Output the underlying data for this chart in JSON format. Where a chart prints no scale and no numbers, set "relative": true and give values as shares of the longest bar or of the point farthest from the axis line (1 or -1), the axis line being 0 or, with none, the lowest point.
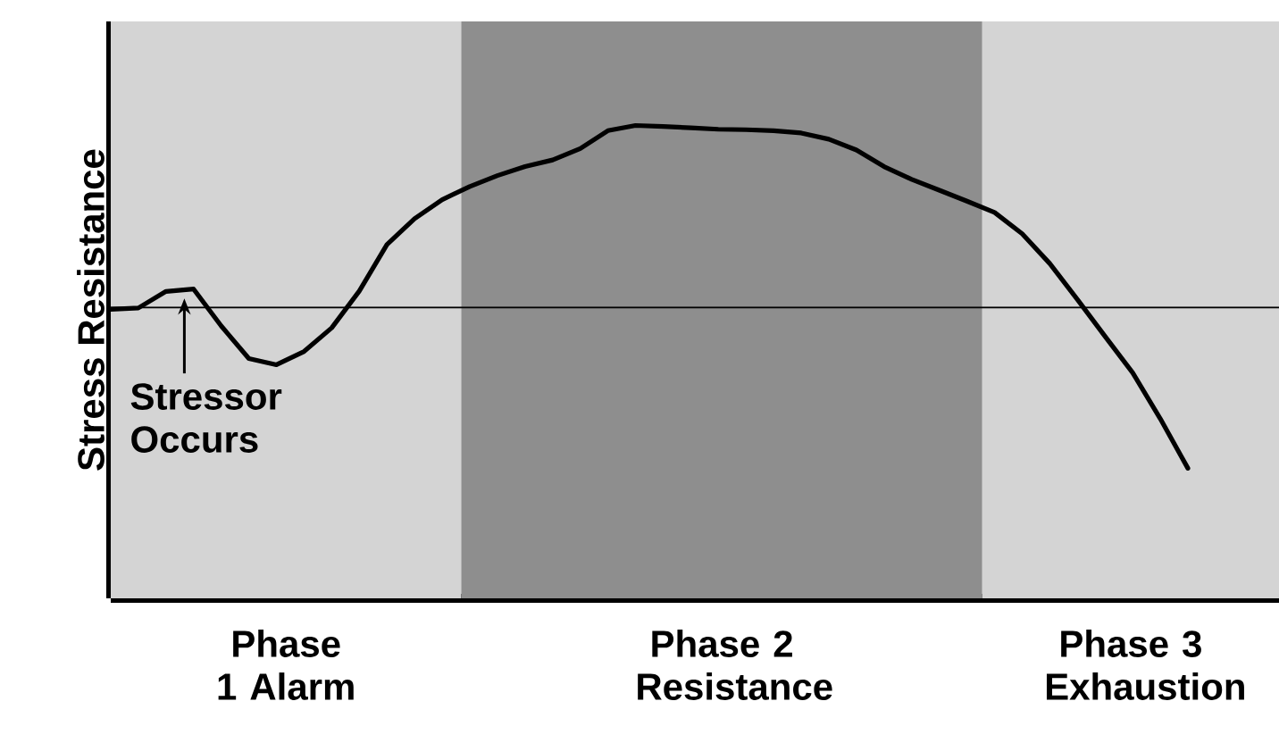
{
  "chart_data": {
    "type": "line",
    "ylabel": "Stress Resistance",
    "relative": true,
    "tick_labels": false,
    "color": "#000000",
    "categories": [
      null,
      null,
      null,
      null,
      null,
      null,
      null,
      null,
      null,
      null,
      null,
      null,
      null,
      null,
      null,
      null,
      null,
      null,
      null,
      null,
      null,
      null,
      null,
      null,
      null,
      null,
      null,
      null,
      null,
      null,
      null,
      null,
      null,
      null,
      null,
      null,
      null,
      null,
      null,
      null
    ],
    "values": [
      0.611,
      0.614,
      0.649,
      0.654,
      0.576,
      0.507,
      0.494,
      0.522,
      0.572,
      0.65,
      0.748,
      0.803,
      0.843,
      0.871,
      0.894,
      0.913,
      0.927,
      0.951,
      0.989,
      1.0,
      0.998,
      0.995,
      0.992,
      0.991,
      0.989,
      0.984,
      0.971,
      0.948,
      0.913,
      0.886,
      0.863,
      0.84,
      0.816,
      0.771,
      0.708,
      0.632,
      0.554,
      0.477,
      0.38,
      0.275
    ],
    "ref_lines": [
      {
        "axis": "y",
        "value": 0.615,
        "color": "#000000"
      }
    ],
    "annotations": [
      {
        "text": "Stressor Occurs",
        "y": 0.657
      },
      "Phase 1 Alarm",
      "Phase 2 Resistance",
      "Phase 3 Exhaustion"
    ]
  }
}
